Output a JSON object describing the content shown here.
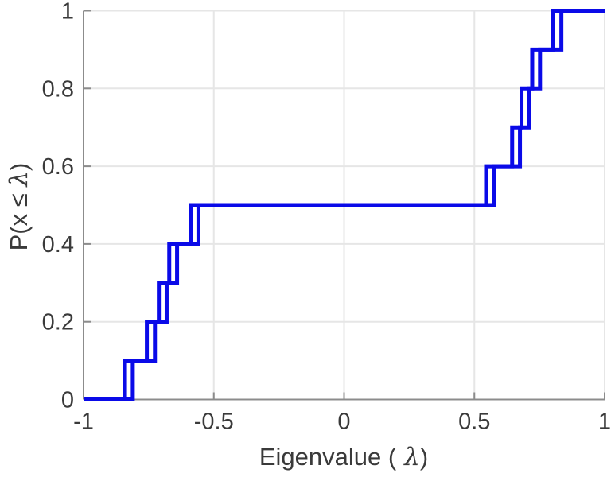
{
  "figure": {
    "background": "#ffffff"
  },
  "labels": {
    "x_prefix": "Eigenvalue (",
    "x_symbol": "λ",
    "x_suffix": ")",
    "y_prefix": "P(x ≤ ",
    "y_symbol": "λ",
    "y_suffix": ")"
  },
  "chart_data": {
    "type": "step",
    "title": "",
    "description": "Empirical CDF (staircase) of eigenvalues; two nearly identical overlaid blue step curves, each rising in increments of 0.1",
    "xlabel": "Eigenvalue ( λ)",
    "ylabel": "P(x ≤ λ)",
    "x_axis": {
      "range": [
        -1,
        1
      ],
      "ticks": [
        -1,
        -0.5,
        0,
        0.5,
        1
      ],
      "tick_labels": [
        "-1",
        "-0.5",
        "0",
        "0.5",
        "1"
      ],
      "grid": true
    },
    "y_axis": {
      "range": [
        0,
        1
      ],
      "ticks": [
        0,
        0.2,
        0.4,
        0.6,
        0.8,
        1
      ],
      "tick_labels": [
        "0",
        "0.2",
        "0.4",
        "0.6",
        "0.8",
        "1"
      ],
      "grid": true
    },
    "step_increment": 0.1,
    "series": [
      {
        "name": "ecdf-curve-1",
        "jump_x": [
          -0.841,
          -0.757,
          -0.711,
          -0.671,
          -0.589,
          0.545,
          0.645,
          0.681,
          0.722,
          0.803
        ],
        "start_level": 0,
        "end_level": 1,
        "color": "#0a0ae8"
      },
      {
        "name": "ecdf-curve-2",
        "jump_x": [
          -0.811,
          -0.726,
          -0.681,
          -0.641,
          -0.559,
          0.576,
          0.675,
          0.711,
          0.752,
          0.834
        ],
        "start_level": 0,
        "end_level": 1,
        "color": "#0a0ae8"
      }
    ],
    "legend": null,
    "colors": {
      "line": "#0a0ae8",
      "axis": "#8c8c8c",
      "grid": "#e6e6e6",
      "text": "#3a3a3a"
    }
  }
}
